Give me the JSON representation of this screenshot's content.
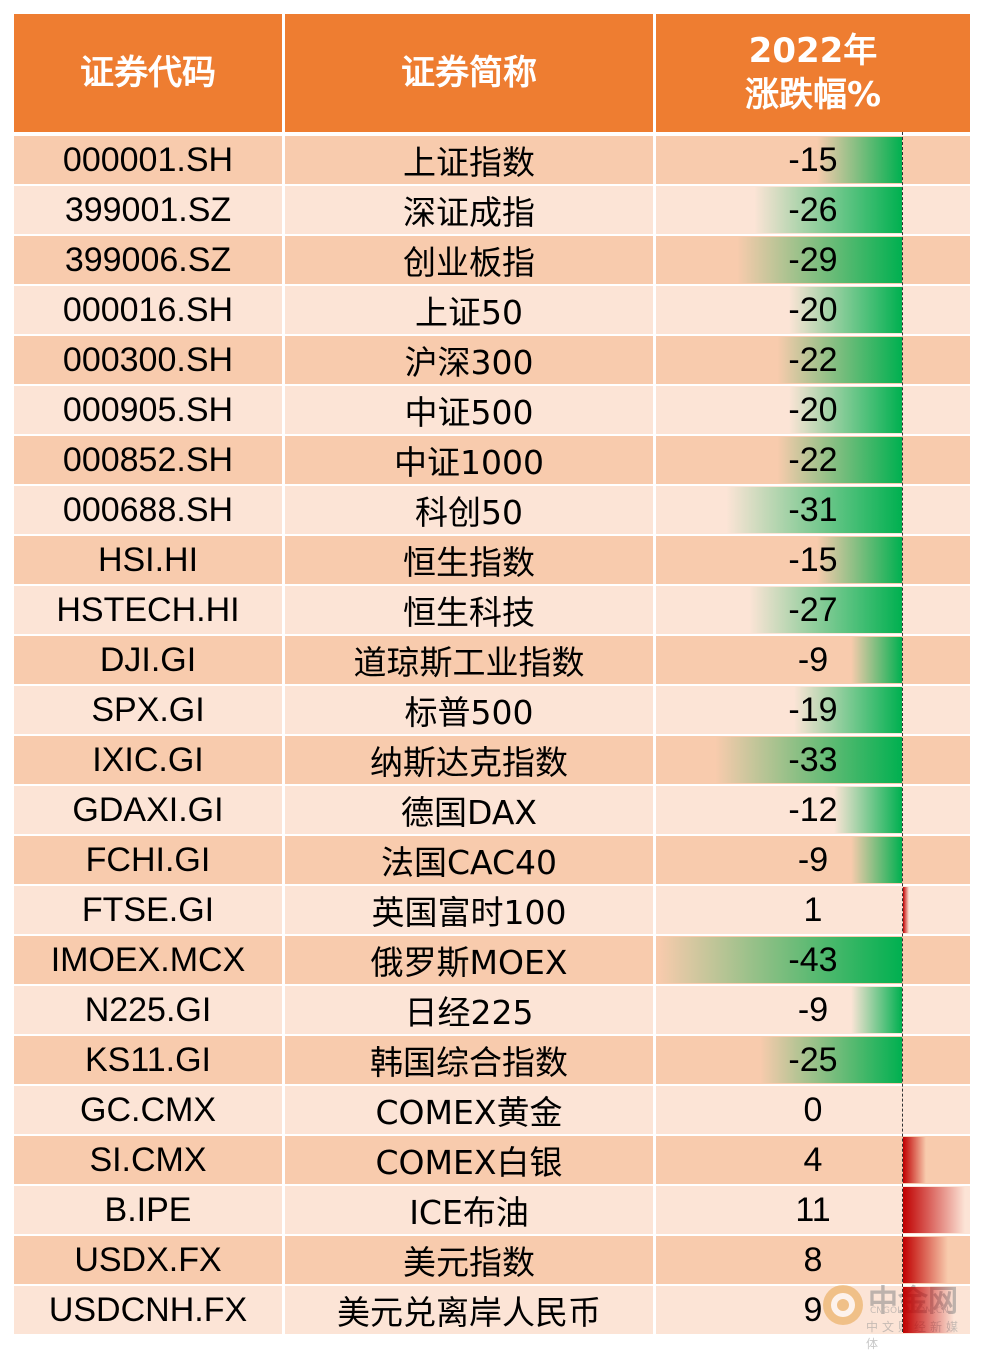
{
  "header": {
    "code": "证券代码",
    "name": "证券简称",
    "change_line1": "2022年",
    "change_line2": "涨跌幅%"
  },
  "colors": {
    "header_bg": "#ee7d31",
    "row_dark": "#f8cbad",
    "row_light": "#fce4d6",
    "negative_bar": "#00b050",
    "positive_bar": "#c00000"
  },
  "chart_data": {
    "type": "table",
    "columns": [
      "证券代码",
      "证券简称",
      "2022年涨跌幅%"
    ],
    "rows": [
      {
        "code": "000001.SH",
        "name": "上证指数",
        "change": -15
      },
      {
        "code": "399001.SZ",
        "name": "深证成指",
        "change": -26
      },
      {
        "code": "399006.SZ",
        "name": "创业板指",
        "change": -29
      },
      {
        "code": "000016.SH",
        "name": "上证50",
        "change": -20
      },
      {
        "code": "000300.SH",
        "name": "沪深300",
        "change": -22
      },
      {
        "code": "000905.SH",
        "name": "中证500",
        "change": -20
      },
      {
        "code": "000852.SH",
        "name": "中证1000",
        "change": -22
      },
      {
        "code": "000688.SH",
        "name": "科创50",
        "change": -31
      },
      {
        "code": "HSI.HI",
        "name": "恒生指数",
        "change": -15
      },
      {
        "code": "HSTECH.HI",
        "name": "恒生科技",
        "change": -27
      },
      {
        "code": "DJI.GI",
        "name": "道琼斯工业指数",
        "change": -9
      },
      {
        "code": "SPX.GI",
        "name": "标普500",
        "change": -19
      },
      {
        "code": "IXIC.GI",
        "name": "纳斯达克指数",
        "change": -33
      },
      {
        "code": "GDAXI.GI",
        "name": "德国DAX",
        "change": -12
      },
      {
        "code": "FCHI.GI",
        "name": "法国CAC40",
        "change": -9
      },
      {
        "code": "FTSE.GI",
        "name": "英国富时100",
        "change": 1
      },
      {
        "code": "IMOEX.MCX",
        "name": "俄罗斯MOEX",
        "change": -43
      },
      {
        "code": "N225.GI",
        "name": "日经225",
        "change": -9
      },
      {
        "code": "KS11.GI",
        "name": "韩国综合指数",
        "change": -25
      },
      {
        "code": "GC.CMX",
        "name": "COMEX黄金",
        "change": 0
      },
      {
        "code": "SI.CMX",
        "name": "COMEX白银",
        "change": 4
      },
      {
        "code": "B.IPE",
        "name": "ICE布油",
        "change": 11
      },
      {
        "code": "USDX.FX",
        "name": "美元指数",
        "change": 8
      },
      {
        "code": "USDCNH.FX",
        "name": "美元兑离岸人民币",
        "change": 9
      }
    ],
    "bar_range": [
      -43,
      11
    ]
  },
  "watermark": {
    "brand": "中金网",
    "domain": "CNGOLD.COM.CN",
    "tagline": "中文财经新媒体"
  }
}
